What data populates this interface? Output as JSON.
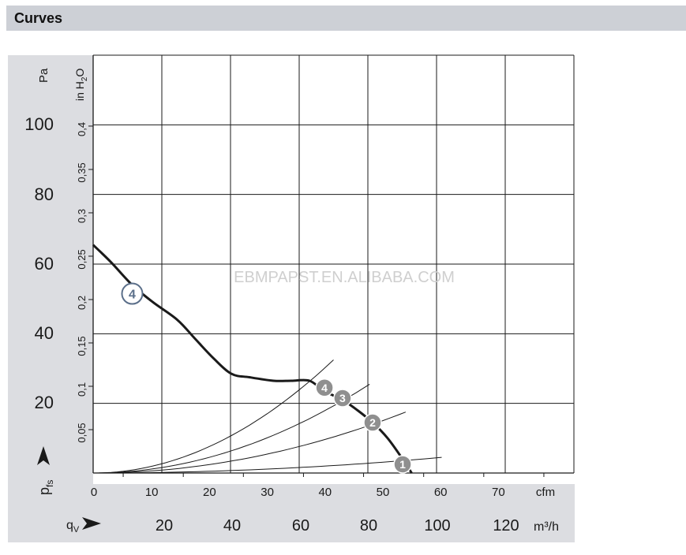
{
  "header": {
    "title": "Curves"
  },
  "watermark": "EBMPAPST.EN.ALIBABA.COM",
  "colors": {
    "header_bg": "#cdd0d6",
    "panel_bg": "#dcdde1",
    "curve": "#1a1a1a",
    "marker_fill": "#8f8f8f",
    "marker_outline": "#5b6f8a"
  },
  "chart_data": {
    "type": "line",
    "title": "",
    "x_axis_cfm": {
      "label": "cfm",
      "ticks": [
        "0",
        "10",
        "20",
        "30",
        "40",
        "50",
        "60",
        "70"
      ],
      "range": [
        0,
        80
      ]
    },
    "x_axis_m3h": {
      "label": "m³/h",
      "prefix_label": "qV",
      "ticks": [
        "20",
        "40",
        "60",
        "80",
        "100",
        "120"
      ],
      "values": [
        20,
        40,
        60,
        80,
        100,
        120
      ]
    },
    "y_axis_pa": {
      "label": "Pa",
      "symbol_label": "pfs",
      "ticks": [
        "20",
        "40",
        "60",
        "80",
        "100"
      ],
      "values": [
        20,
        40,
        60,
        80,
        100
      ],
      "range": [
        0,
        120
      ]
    },
    "y_axis_inh2o": {
      "label": "in H2O",
      "ticks": [
        "0,05",
        "0,1",
        "0,15",
        "0,2",
        "0,25",
        "0,3",
        "0,35",
        "0,4"
      ],
      "values": [
        0.05,
        0.1,
        0.15,
        0.2,
        0.25,
        0.3,
        0.35,
        0.4
      ]
    },
    "grid": true,
    "fan_curve": {
      "name": "4",
      "x_cfm": [
        0,
        3,
        6.5,
        10,
        14,
        17,
        20,
        23,
        26,
        30,
        33,
        36,
        38.5,
        41.5,
        44,
        46.5,
        49,
        51.5,
        53
      ],
      "y_pa": [
        65.5,
        60.5,
        54,
        49,
        44,
        38.5,
        33,
        28.5,
        27.5,
        26.5,
        26.5,
        26.5,
        23.5,
        21,
        18,
        14.5,
        10,
        4,
        0
      ]
    },
    "system_curves": [
      {
        "name": "1",
        "x_end_cfm": 58,
        "y_end_pa": 4.5
      },
      {
        "name": "2",
        "x_end_cfm": 52,
        "y_end_pa": 17.5
      },
      {
        "name": "3",
        "x_end_cfm": 46,
        "y_end_pa": 25.5
      },
      {
        "name": "4",
        "x_end_cfm": 40,
        "y_end_pa": 32.5
      }
    ],
    "markers": [
      {
        "label": "4",
        "x_cfm": 6.5,
        "y_pa": 51.5,
        "style": "outline"
      },
      {
        "label": "4",
        "x_cfm": 38.5,
        "y_pa": 24.5,
        "style": "filled"
      },
      {
        "label": "3",
        "x_cfm": 41.5,
        "y_pa": 21.5,
        "style": "filled"
      },
      {
        "label": "2",
        "x_cfm": 46.5,
        "y_pa": 14.5,
        "style": "filled"
      },
      {
        "label": "1",
        "x_cfm": 51.5,
        "y_pa": 2.5,
        "style": "filled"
      }
    ]
  }
}
